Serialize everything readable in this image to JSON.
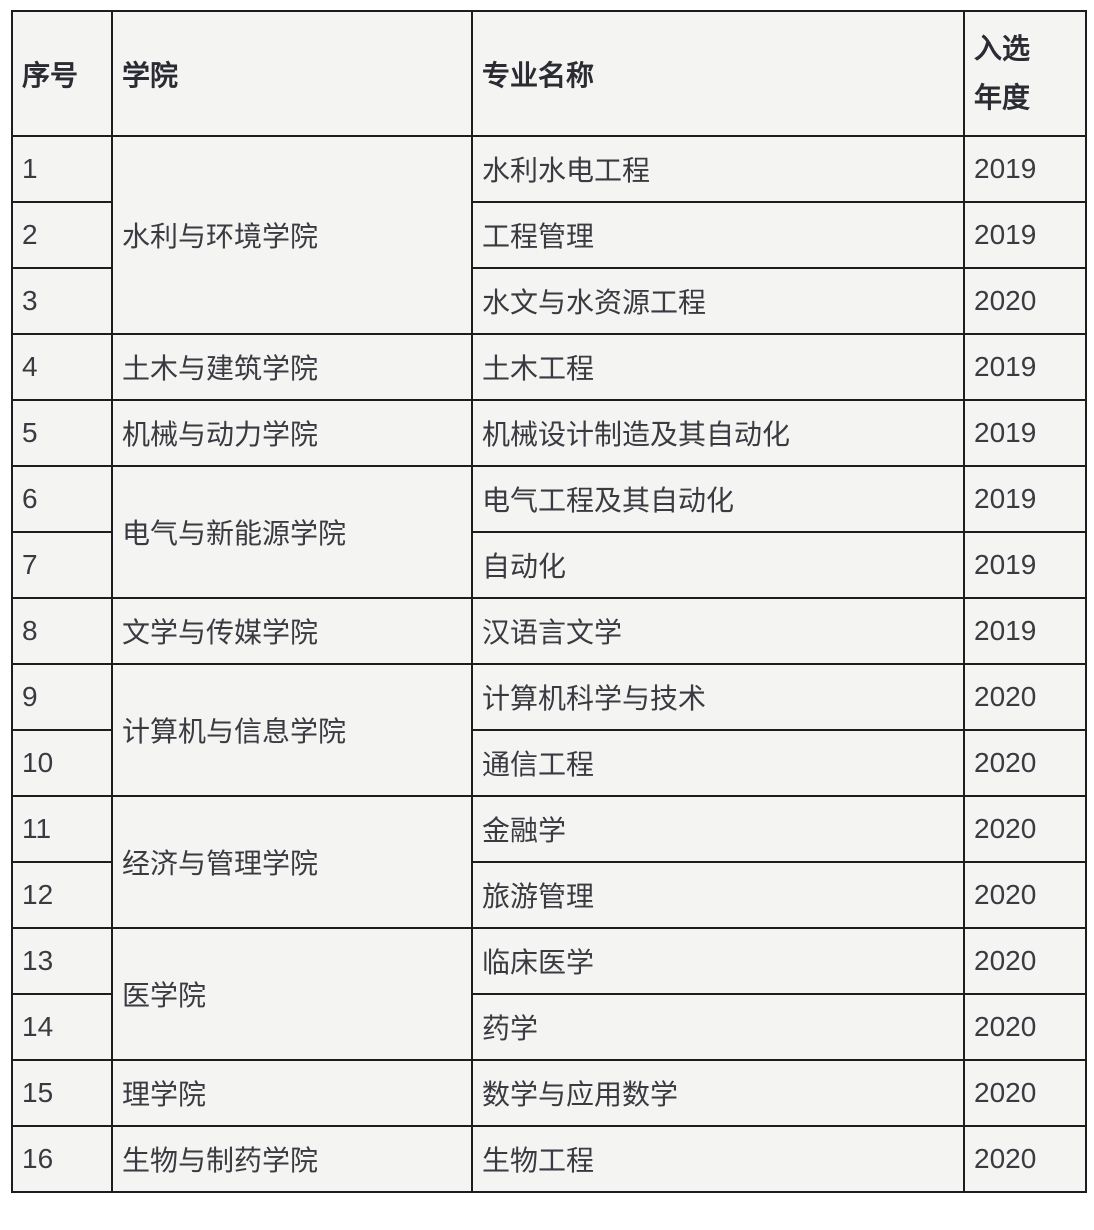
{
  "table": {
    "headers": {
      "no": "序号",
      "college": "学院",
      "major": "专业名称",
      "year_line1": "入选",
      "year_line2": "年度"
    },
    "colleges": [
      {
        "name": "水利与环境学院"
      },
      {
        "name": "土木与建筑学院"
      },
      {
        "name": "机械与动力学院"
      },
      {
        "name": "电气与新能源学院"
      },
      {
        "name": "文学与传媒学院"
      },
      {
        "name": "计算机与信息学院"
      },
      {
        "name": "经济与管理学院"
      },
      {
        "name": "医学院"
      },
      {
        "name": "理学院"
      },
      {
        "name": "生物与制药学院"
      }
    ],
    "rows": [
      {
        "no": "1",
        "major": "水利水电工程",
        "year": "2019"
      },
      {
        "no": "2",
        "major": "工程管理",
        "year": "2019"
      },
      {
        "no": "3",
        "major": "水文与水资源工程",
        "year": "2020"
      },
      {
        "no": "4",
        "major": "土木工程",
        "year": "2019"
      },
      {
        "no": "5",
        "major": "机械设计制造及其自动化",
        "year": "2019"
      },
      {
        "no": "6",
        "major": "电气工程及其自动化",
        "year": "2019"
      },
      {
        "no": "7",
        "major": "自动化",
        "year": "2019"
      },
      {
        "no": "8",
        "major": "汉语言文学",
        "year": "2019"
      },
      {
        "no": "9",
        "major": "计算机科学与技术",
        "year": "2020"
      },
      {
        "no": "10",
        "major": "通信工程",
        "year": "2020"
      },
      {
        "no": "11",
        "major": "金融学",
        "year": "2020"
      },
      {
        "no": "12",
        "major": "旅游管理",
        "year": "2020"
      },
      {
        "no": "13",
        "major": "临床医学",
        "year": "2020"
      },
      {
        "no": "14",
        "major": "药学",
        "year": "2020"
      },
      {
        "no": "15",
        "major": "数学与应用数学",
        "year": "2020"
      },
      {
        "no": "16",
        "major": "生物工程",
        "year": "2020"
      }
    ]
  },
  "colors": {
    "cell_background": "#f4f4f3",
    "border": "#1d1d1f",
    "text_regular": "#3a3a41",
    "text_bold": "#26262d",
    "page_background": "#ffffff"
  },
  "chart_data": {
    "type": "table",
    "title": "",
    "columns": [
      "序号",
      "学院",
      "专业名称",
      "入选年度"
    ],
    "rows": [
      [
        "1",
        "水利与环境学院",
        "水利水电工程",
        "2019"
      ],
      [
        "2",
        "水利与环境学院",
        "工程管理",
        "2019"
      ],
      [
        "3",
        "水利与环境学院",
        "水文与水资源工程",
        "2020"
      ],
      [
        "4",
        "土木与建筑学院",
        "土木工程",
        "2019"
      ],
      [
        "5",
        "机械与动力学院",
        "机械设计制造及其自动化",
        "2019"
      ],
      [
        "6",
        "电气与新能源学院",
        "电气工程及其自动化",
        "2019"
      ],
      [
        "7",
        "电气与新能源学院",
        "自动化",
        "2019"
      ],
      [
        "8",
        "文学与传媒学院",
        "汉语言文学",
        "2019"
      ],
      [
        "9",
        "计算机与信息学院",
        "计算机科学与技术",
        "2020"
      ],
      [
        "10",
        "计算机与信息学院",
        "通信工程",
        "2020"
      ],
      [
        "11",
        "经济与管理学院",
        "金融学",
        "2020"
      ],
      [
        "12",
        "经济与管理学院",
        "旅游管理",
        "2020"
      ],
      [
        "13",
        "医学院",
        "临床医学",
        "2020"
      ],
      [
        "14",
        "医学院",
        "药学",
        "2020"
      ],
      [
        "15",
        "理学院",
        "数学与应用数学",
        "2020"
      ],
      [
        "16",
        "生物与制药学院",
        "生物工程",
        "2020"
      ]
    ]
  }
}
